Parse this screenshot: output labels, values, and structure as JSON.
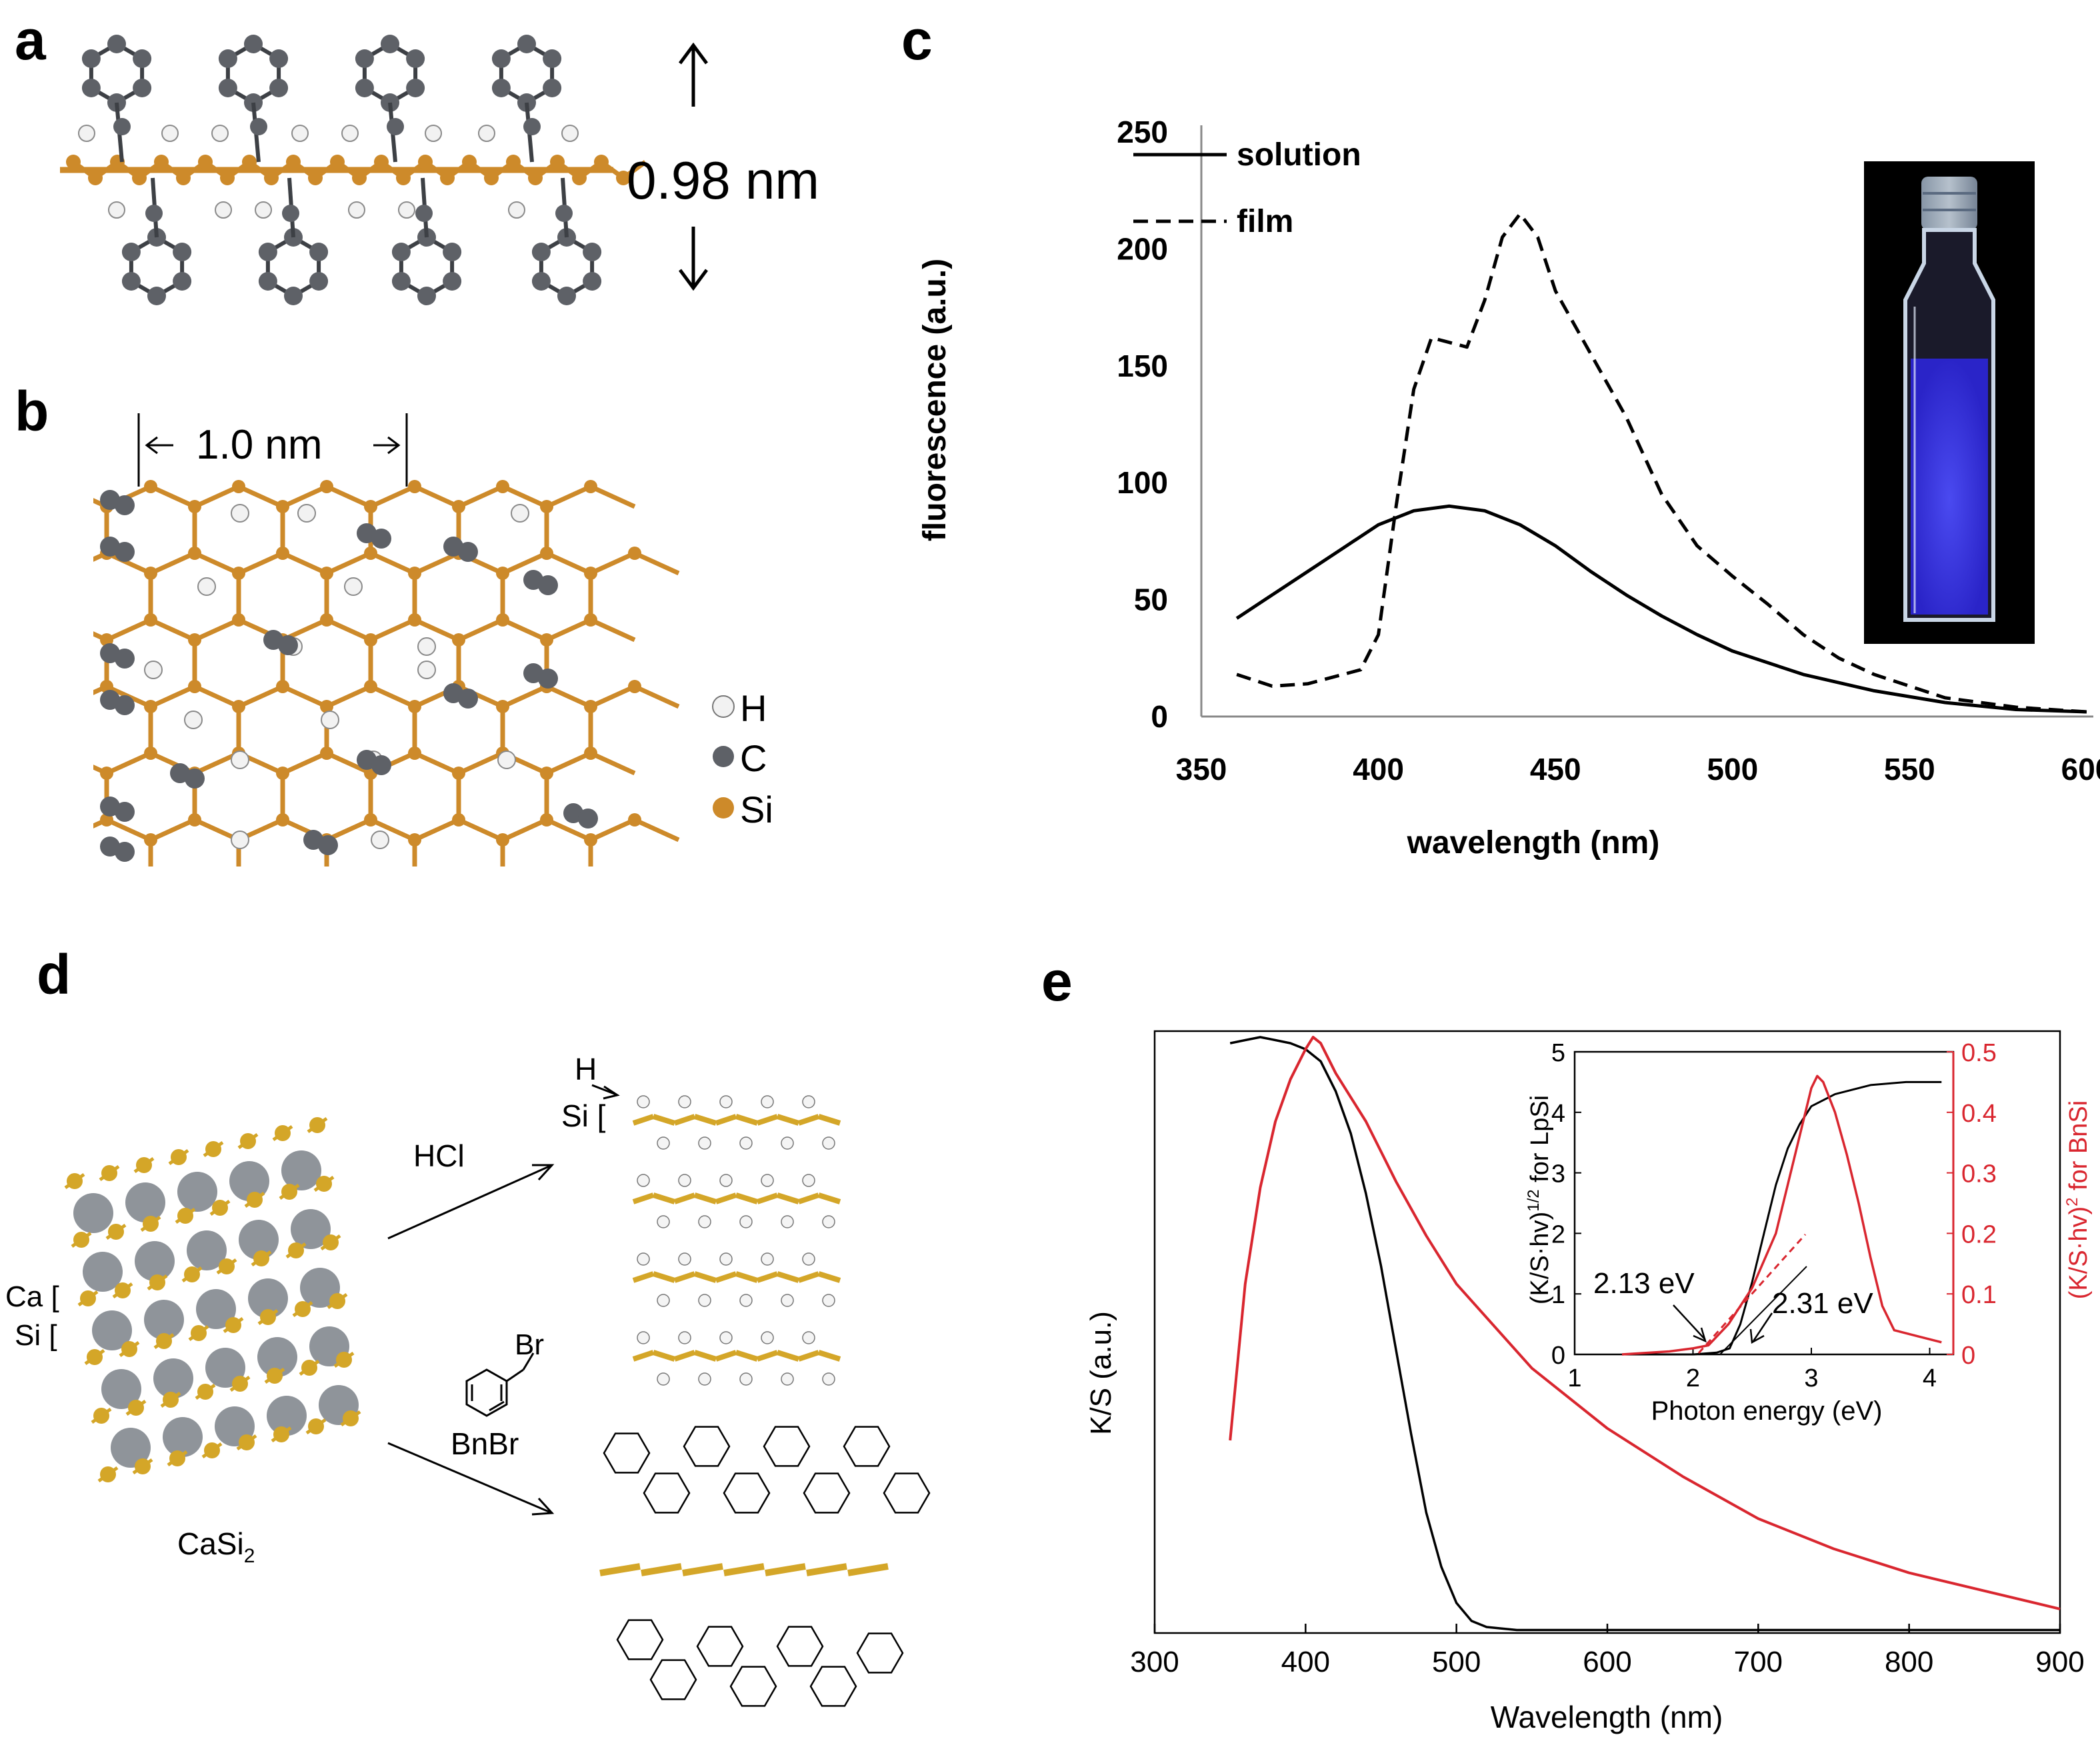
{
  "panels": {
    "a": {
      "letter": "a",
      "thickness_label": "0.98 nm"
    },
    "b": {
      "letter": "b",
      "spacing_label": "1.0 nm",
      "legend": [
        {
          "symbol": "H",
          "color": "#e8e8e8"
        },
        {
          "symbol": "C",
          "color": "#5e6167"
        },
        {
          "symbol": "Si",
          "color": "#cd8a2a"
        }
      ]
    },
    "c": {
      "letter": "c"
    },
    "d": {
      "letter": "d",
      "label_h": "H",
      "label_si_top": "Si [",
      "label_hcl": "HCl",
      "label_br": "Br",
      "label_bnbr": "BnBr",
      "label_ca": "Ca [",
      "label_si_left": "Si [",
      "label_casi2": "CaSi",
      "label_casi2_sub": "2"
    },
    "e": {
      "letter": "e"
    }
  },
  "colors": {
    "silicon": "#cd8a2a",
    "silicon_d": "#d4a628",
    "carbon": "#5e6167",
    "hydrogen": "#f2f2f2",
    "red": "#d9262f",
    "vial_blue": "#3a3ae0"
  },
  "chart_data": [
    {
      "panel": "c",
      "type": "line",
      "title": "",
      "xlabel": "wavelength (nm)",
      "ylabel": "fluorescence (a.u.)",
      "xlim": [
        350,
        600
      ],
      "ylim": [
        0,
        250
      ],
      "xticks": [
        "350",
        "400",
        "450",
        "500",
        "550",
        "600"
      ],
      "yticks": [
        "0",
        "50",
        "100",
        "150",
        "200",
        "250"
      ],
      "legend_position": "top-left",
      "series": [
        {
          "name": "solution",
          "style": "solid",
          "x": [
            360,
            370,
            380,
            390,
            400,
            410,
            420,
            430,
            440,
            450,
            460,
            470,
            480,
            490,
            500,
            520,
            540,
            560,
            580,
            600
          ],
          "y": [
            42,
            52,
            62,
            72,
            82,
            88,
            90,
            88,
            82,
            73,
            62,
            52,
            43,
            35,
            28,
            18,
            11,
            6,
            3,
            2
          ]
        },
        {
          "name": "film",
          "style": "dashed",
          "x": [
            360,
            370,
            380,
            390,
            395,
            400,
            405,
            410,
            415,
            420,
            425,
            430,
            435,
            440,
            445,
            450,
            460,
            470,
            480,
            490,
            500,
            510,
            520,
            530,
            540,
            560,
            580,
            600
          ],
          "y": [
            18,
            13,
            14,
            18,
            20,
            35,
            90,
            140,
            162,
            160,
            158,
            178,
            205,
            215,
            205,
            182,
            155,
            128,
            95,
            73,
            60,
            48,
            35,
            25,
            18,
            8,
            4,
            2
          ]
        }
      ]
    },
    {
      "panel": "e",
      "type": "line",
      "title": "",
      "xlabel": "Wavelength  (nm)",
      "ylabel": "K/S (a.u.)",
      "xlim": [
        300,
        900
      ],
      "ylim": [
        0,
        1
      ],
      "xticks": [
        "300",
        "400",
        "500",
        "600",
        "700",
        "800",
        "900"
      ],
      "series": [
        {
          "name": "",
          "color": "#000000",
          "x": [
            350,
            360,
            370,
            380,
            390,
            400,
            410,
            420,
            430,
            440,
            450,
            460,
            470,
            480,
            490,
            500,
            510,
            520,
            540,
            600,
            700,
            800,
            900
          ],
          "y": [
            0.98,
            0.985,
            0.99,
            0.985,
            0.98,
            0.97,
            0.95,
            0.9,
            0.83,
            0.73,
            0.61,
            0.47,
            0.33,
            0.2,
            0.11,
            0.05,
            0.02,
            0.01,
            0.005,
            0.005,
            0.005,
            0.005,
            0.005
          ]
        },
        {
          "name": "",
          "color": "#d9262f",
          "x": [
            350,
            360,
            370,
            380,
            390,
            400,
            405,
            410,
            420,
            430,
            440,
            450,
            460,
            480,
            500,
            550,
            600,
            650,
            700,
            750,
            800,
            850,
            900
          ],
          "y": [
            0.32,
            0.58,
            0.74,
            0.85,
            0.92,
            0.97,
            0.99,
            0.98,
            0.93,
            0.89,
            0.85,
            0.8,
            0.75,
            0.66,
            0.58,
            0.44,
            0.34,
            0.26,
            0.19,
            0.14,
            0.1,
            0.07,
            0.04
          ]
        }
      ]
    },
    {
      "panel": "e-inset",
      "type": "line",
      "title": "",
      "xlabel": "Photon energy (eV)",
      "ylabel": "(K/S·hv)¹ᐟ² for LpSi",
      "ylabel_left_text": "(K/S·hv)",
      "ylabel_left_sup": "1/2",
      "ylabel_left_suffix": " for LpSi",
      "ylabel2_text": "(K/S·hv)",
      "ylabel2_sup": "2",
      "ylabel2_suffix": " for BnSi",
      "xlim": [
        1,
        4.2
      ],
      "ylim": [
        0,
        5
      ],
      "y2lim": [
        0,
        0.5
      ],
      "xticks": [
        "1",
        "2",
        "3",
        "4"
      ],
      "yticks": [
        "0",
        "1",
        "2",
        "3",
        "4",
        "5"
      ],
      "y2ticks": [
        "0",
        "0.1",
        "0.2",
        "0.3",
        "0.4",
        "0.5"
      ],
      "annotations": [
        "2.13 eV",
        "2.31 eV"
      ],
      "series": [
        {
          "name": "",
          "color": "#000000",
          "axis": "left",
          "x": [
            1.4,
            2.0,
            2.2,
            2.31,
            2.4,
            2.5,
            2.6,
            2.7,
            2.8,
            2.9,
            3.0,
            3.2,
            3.5,
            3.8,
            4.1
          ],
          "y": [
            0,
            0,
            0.03,
            0.1,
            0.5,
            1.2,
            2.0,
            2.8,
            3.4,
            3.8,
            4.1,
            4.3,
            4.45,
            4.5,
            4.5
          ]
        },
        {
          "name": "",
          "color": "#d9262f",
          "axis": "right",
          "x": [
            1.4,
            1.8,
            2.0,
            2.13,
            2.3,
            2.5,
            2.7,
            2.9,
            3.0,
            3.05,
            3.1,
            3.2,
            3.3,
            3.4,
            3.5,
            3.6,
            3.7,
            3.9,
            4.1
          ],
          "y": [
            0,
            0.005,
            0.01,
            0.015,
            0.05,
            0.11,
            0.2,
            0.36,
            0.44,
            0.46,
            0.45,
            0.4,
            0.33,
            0.25,
            0.16,
            0.08,
            0.04,
            0.03,
            0.02
          ]
        }
      ]
    }
  ]
}
